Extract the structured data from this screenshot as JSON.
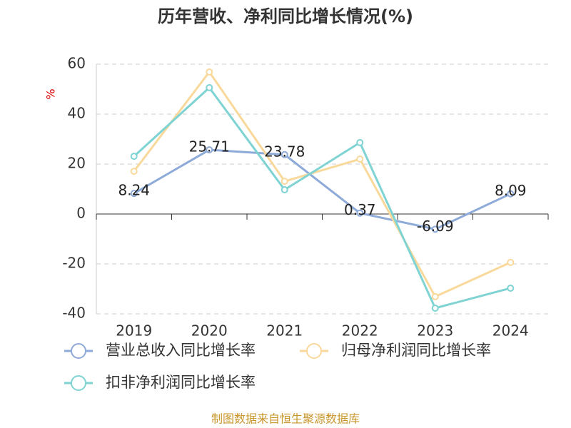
{
  "chart_data": {
    "type": "line",
    "title": "历年营收、净利同比增长情况(%)",
    "y_label": "%",
    "categories": [
      "2019",
      "2020",
      "2021",
      "2022",
      "2023",
      "2024"
    ],
    "series": [
      {
        "name": "营业总收入同比增长率",
        "color": "#8eaad8",
        "values": [
          8.24,
          25.71,
          23.78,
          0.37,
          -6.09,
          8.09
        ],
        "show_labels": true
      },
      {
        "name": "归母净利润同比增长率",
        "color": "#f9d99b",
        "values": [
          17.1,
          56.9,
          13.1,
          22.0,
          -33.1,
          -19.4
        ],
        "show_labels": false
      },
      {
        "name": "扣非净利润同比增长率",
        "color": "#7fd3d3",
        "values": [
          23.1,
          50.6,
          9.7,
          28.6,
          -37.7,
          -29.7
        ],
        "show_labels": false
      }
    ],
    "ylim": [
      -40,
      60
    ],
    "yticks": [
      -40,
      -20,
      0,
      20,
      40,
      60
    ],
    "grid": true,
    "source": "制图数据来自恒生聚源数据库"
  }
}
